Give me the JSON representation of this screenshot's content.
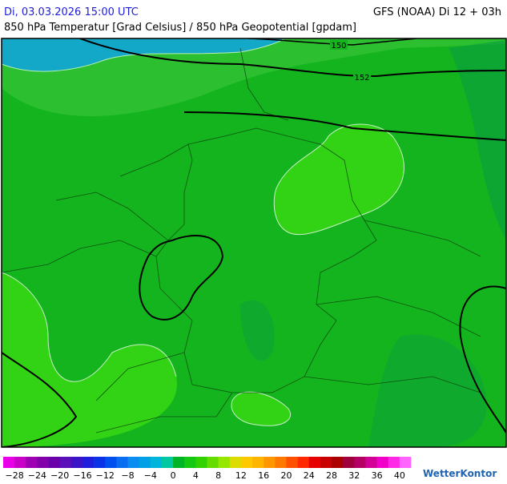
{
  "header": {
    "left": "Di, 03.03.2026 15:00 UTC",
    "right": "GFS (NOAA) Di 12 + 03h",
    "subtitle": "850 hPa Temperatur [Grad Celsius] / 850 hPa Geopotential [gpdam]"
  },
  "map": {
    "contour_labels": [
      "150",
      "152"
    ]
  },
  "legend": {
    "labels": [
      "−28",
      "−24",
      "−20",
      "−16",
      "−12",
      "−8",
      "−4",
      "0",
      "4",
      "8",
      "12",
      "16",
      "20",
      "24",
      "28",
      "32",
      "36",
      "40"
    ],
    "colors": [
      "#e800e8",
      "#c800c8",
      "#a000b4",
      "#8200aa",
      "#6a00aa",
      "#5a10b8",
      "#3c14c8",
      "#1e1edc",
      "#0a32e6",
      "#0050f0",
      "#0a6ef0",
      "#0a8cf0",
      "#00a0e6",
      "#00b4dc",
      "#00c8a0",
      "#00b428",
      "#14c814",
      "#32d200",
      "#64dc00",
      "#96e600",
      "#dcdc00",
      "#ffc800",
      "#ffb400",
      "#ff9600",
      "#ff7800",
      "#ff5000",
      "#ff2800",
      "#e60000",
      "#c80000",
      "#aa0000",
      "#a0003c",
      "#b40064",
      "#d20096",
      "#f000c8",
      "#ff28e6",
      "#ff64ff"
    ]
  },
  "brand": "WetterKontor"
}
